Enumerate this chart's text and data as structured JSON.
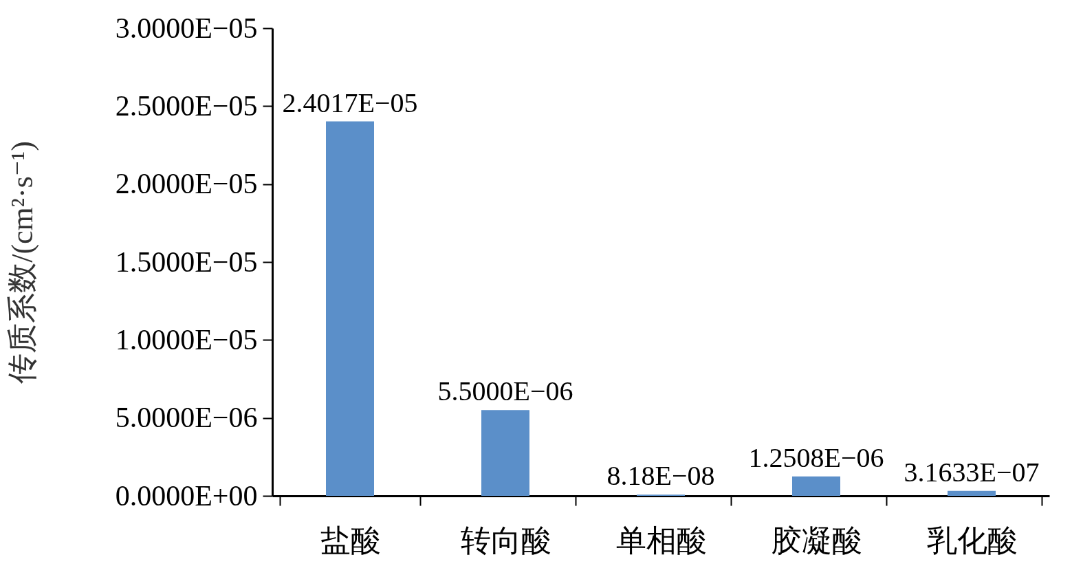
{
  "chart_data": {
    "type": "bar",
    "ylabel": "传质系数/(cm²·s⁻¹)",
    "categories": [
      "盐酸",
      "转向酸",
      "单相酸",
      "胶凝酸",
      "乳化酸"
    ],
    "values": [
      2.4017e-05,
      5.5e-06,
      8.18e-08,
      1.2508e-06,
      3.1633e-07
    ],
    "value_labels": [
      "2.4017E−05",
      "5.5000E−06",
      "8.18E−08",
      "1.2508E−06",
      "3.1633E−07"
    ],
    "color": "#5b8fc9",
    "ylim": [
      0,
      3e-05
    ],
    "yticks": [
      {
        "value": 0,
        "label": "0.0000E+00"
      },
      {
        "value": 5e-06,
        "label": "5.0000E−06"
      },
      {
        "value": 1e-05,
        "label": "1.0000E−05"
      },
      {
        "value": 1.5e-05,
        "label": "1.5000E−05"
      },
      {
        "value": 2e-05,
        "label": "2.0000E−05"
      },
      {
        "value": 2.5e-05,
        "label": "2.5000E−05"
      },
      {
        "value": 3e-05,
        "label": "3.0000E−05"
      }
    ],
    "grid": false
  }
}
